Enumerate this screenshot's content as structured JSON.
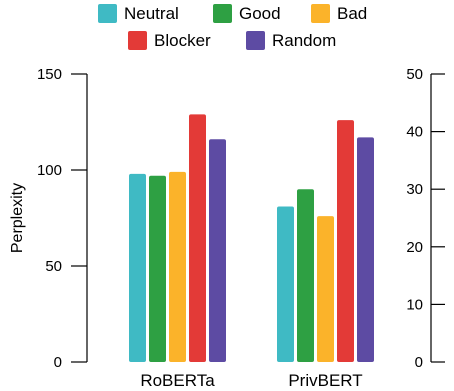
{
  "chart_data": {
    "type": "bar",
    "categories": [
      "RoBERTa",
      "PrivBERT"
    ],
    "series": [
      {
        "name": "Neutral",
        "color": "#3fbac4",
        "values": [
          98,
          81
        ]
      },
      {
        "name": "Good",
        "color": "#2ea043",
        "values": [
          97,
          90
        ]
      },
      {
        "name": "Bad",
        "color": "#fbb32a",
        "values": [
          99,
          76
        ]
      },
      {
        "name": "Blocker",
        "color": "#e33a37",
        "values": [
          129,
          126
        ]
      },
      {
        "name": "Random",
        "color": "#5d4ba3",
        "values": [
          116,
          117
        ]
      }
    ],
    "ylabel": "Perplexity",
    "ylim": [
      0,
      150
    ],
    "yticks": [
      "0",
      "50",
      "100",
      "150"
    ],
    "y2lim": [
      0,
      50
    ],
    "y2ticks": [
      "0",
      "10",
      "20",
      "30",
      "40",
      "50"
    ],
    "legend": "top",
    "grid": false
  }
}
